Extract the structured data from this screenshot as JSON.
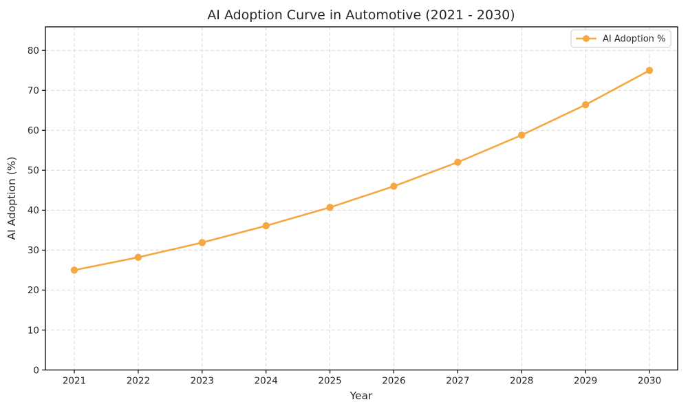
{
  "figure": {
    "background": "#ffffff"
  },
  "chart_data": {
    "type": "line",
    "title": "AI Adoption Curve in Automotive (2021 - 2030)",
    "xlabel": "Year",
    "ylabel": "AI Adoption (%)",
    "categories": [
      "2021",
      "2022",
      "2023",
      "2024",
      "2025",
      "2026",
      "2027",
      "2028",
      "2029",
      "2030"
    ],
    "series": [
      {
        "name": "AI Adoption %",
        "color": "#F5A742",
        "marker": "circle",
        "values": [
          25.0,
          28.2,
          31.9,
          36.1,
          40.7,
          46.0,
          52.0,
          58.8,
          66.4,
          75.0
        ]
      }
    ],
    "ylim": [
      0,
      85.9
    ],
    "yticks": [
      0,
      10,
      20,
      30,
      40,
      50,
      60,
      70,
      80
    ],
    "grid": {
      "visible": true,
      "style": "dashed",
      "color": "#D9D9D9"
    },
    "legend": {
      "position": "upper-right",
      "entries": [
        "AI Adoption %"
      ]
    },
    "colors": {
      "spine": "#000000",
      "text": "#262626",
      "legend_border": "#C8C8C8",
      "legend_background": "#ffffff"
    }
  }
}
